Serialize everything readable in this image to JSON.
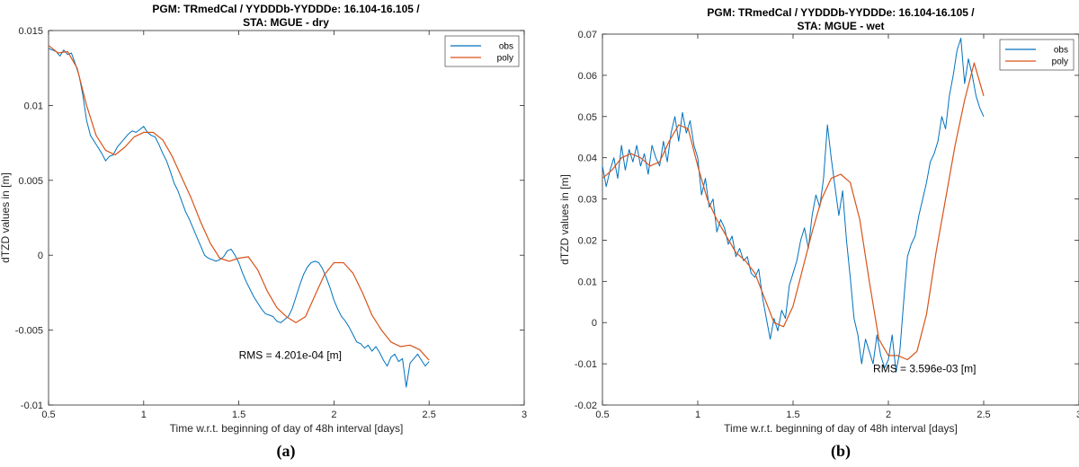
{
  "chart_data": [
    {
      "type": "line",
      "panel_label": "(a)",
      "title_line1": "PGM: TRmedCal / YYDDDb-YYDDDe: 16.104-16.105 /",
      "title_line2": "STA: MGUE - dry",
      "xlabel": "Time w.r.t. beginning of day of 48h interval [days]",
      "ylabel": "dTZD values in [m]",
      "xlim": [
        0.5,
        3
      ],
      "ylim": [
        -0.01,
        0.015
      ],
      "xticks": [
        "0.5",
        "1",
        "1.5",
        "2",
        "2.5",
        "3"
      ],
      "yticks": [
        "-0.01",
        "-0.005",
        "0",
        "0.005",
        "0.01",
        "0.015"
      ],
      "legend_position": "top-right",
      "annotation": "RMS = 4.201e-04 [m]",
      "annotation_at": [
        1.5,
        -0.0069
      ],
      "series": [
        {
          "name": "obs",
          "color": "#0072BD",
          "x": [
            0.5,
            0.52,
            0.54,
            0.56,
            0.58,
            0.6,
            0.62,
            0.64,
            0.66,
            0.68,
            0.7,
            0.72,
            0.74,
            0.76,
            0.78,
            0.8,
            0.82,
            0.84,
            0.86,
            0.88,
            0.9,
            0.92,
            0.94,
            0.96,
            0.98,
            1.0,
            1.02,
            1.04,
            1.06,
            1.08,
            1.1,
            1.12,
            1.14,
            1.16,
            1.18,
            1.2,
            1.22,
            1.24,
            1.26,
            1.28,
            1.3,
            1.32,
            1.34,
            1.36,
            1.38,
            1.4,
            1.42,
            1.44,
            1.46,
            1.48,
            1.5,
            1.52,
            1.54,
            1.56,
            1.58,
            1.6,
            1.62,
            1.64,
            1.66,
            1.68,
            1.7,
            1.72,
            1.74,
            1.76,
            1.78,
            1.8,
            1.82,
            1.84,
            1.86,
            1.88,
            1.9,
            1.92,
            1.94,
            1.96,
            1.98,
            2.0,
            2.02,
            2.04,
            2.06,
            2.08,
            2.1,
            2.12,
            2.14,
            2.16,
            2.18,
            2.2,
            2.22,
            2.24,
            2.26,
            2.28,
            2.3,
            2.32,
            2.34,
            2.36,
            2.38,
            2.4,
            2.42,
            2.44,
            2.46,
            2.48,
            2.5
          ],
          "y": [
            0.0138,
            0.0137,
            0.0136,
            0.0133,
            0.0137,
            0.0134,
            0.0135,
            0.0128,
            0.012,
            0.0107,
            0.009,
            0.008,
            0.0076,
            0.0072,
            0.0068,
            0.0063,
            0.0066,
            0.0067,
            0.0072,
            0.0075,
            0.0078,
            0.0081,
            0.0083,
            0.0082,
            0.0084,
            0.0086,
            0.0082,
            0.008,
            0.0079,
            0.0074,
            0.0068,
            0.0063,
            0.0056,
            0.0048,
            0.0043,
            0.0036,
            0.0029,
            0.0024,
            0.0018,
            0.0012,
            0.0006,
            0.0,
            -0.0002,
            -0.0003,
            -0.0004,
            -0.0003,
            -0.0001,
            0.0003,
            0.0004,
            0.0,
            -0.0005,
            -0.0012,
            -0.0018,
            -0.0023,
            -0.0028,
            -0.0032,
            -0.0036,
            -0.0039,
            -0.004,
            -0.0041,
            -0.0044,
            -0.0045,
            -0.0043,
            -0.0041,
            -0.0036,
            -0.0028,
            -0.002,
            -0.0013,
            -0.0008,
            -0.0005,
            -0.0004,
            -0.0005,
            -0.0009,
            -0.0015,
            -0.0022,
            -0.003,
            -0.0036,
            -0.0041,
            -0.0044,
            -0.0048,
            -0.0053,
            -0.0058,
            -0.0059,
            -0.0062,
            -0.006,
            -0.0064,
            -0.0061,
            -0.0065,
            -0.007,
            -0.0074,
            -0.0068,
            -0.0066,
            -0.0071,
            -0.0069,
            -0.0088,
            -0.0072,
            -0.0069,
            -0.0066,
            -0.007,
            -0.0074,
            -0.0071
          ]
        },
        {
          "name": "poly",
          "color": "#D95319",
          "x": [
            0.5,
            0.55,
            0.6,
            0.65,
            0.7,
            0.75,
            0.8,
            0.85,
            0.9,
            0.95,
            1.0,
            1.05,
            1.1,
            1.15,
            1.2,
            1.25,
            1.3,
            1.35,
            1.4,
            1.45,
            1.5,
            1.55,
            1.6,
            1.65,
            1.7,
            1.75,
            1.8,
            1.85,
            1.9,
            1.95,
            2.0,
            2.05,
            2.1,
            2.15,
            2.2,
            2.25,
            2.3,
            2.35,
            2.4,
            2.45,
            2.5
          ],
          "y": [
            0.014,
            0.0135,
            0.0136,
            0.0125,
            0.01,
            0.008,
            0.007,
            0.0067,
            0.0072,
            0.0079,
            0.0082,
            0.0082,
            0.0077,
            0.0066,
            0.0052,
            0.0038,
            0.0022,
            0.0008,
            -0.0002,
            -0.0004,
            -0.0002,
            -0.0001,
            -0.001,
            -0.0024,
            -0.0035,
            -0.0041,
            -0.0045,
            -0.0041,
            -0.0027,
            -0.0013,
            -0.0005,
            -0.0005,
            -0.0012,
            -0.0025,
            -0.004,
            -0.005,
            -0.0058,
            -0.0061,
            -0.006,
            -0.0063,
            -0.007
          ]
        }
      ]
    },
    {
      "type": "line",
      "panel_label": "(b)",
      "title_line1": "PGM: TRmedCal / YYDDDb-YYDDDe: 16.104-16.105 /",
      "title_line2": "STA: MGUE - wet",
      "xlabel": "Time w.r.t. beginning of day of 48h interval [days]",
      "ylabel": "dTZD values in [m]",
      "xlim": [
        0.5,
        3
      ],
      "ylim": [
        -0.02,
        0.07
      ],
      "xticks": [
        "0.5",
        "1",
        "1.5",
        "2",
        "2.5",
        "3"
      ],
      "yticks": [
        "-0.02",
        "-0.01",
        "0",
        "0.01",
        "0.02",
        "0.03",
        "0.04",
        "0.05",
        "0.06",
        "0.07"
      ],
      "legend_position": "top-right",
      "annotation": "RMS = 3.596e-03 [m]",
      "annotation_at": [
        1.92,
        -0.012
      ],
      "series": [
        {
          "name": "obs",
          "color": "#0072BD",
          "x": [
            0.5,
            0.52,
            0.54,
            0.56,
            0.58,
            0.6,
            0.62,
            0.64,
            0.66,
            0.68,
            0.7,
            0.72,
            0.74,
            0.76,
            0.78,
            0.8,
            0.82,
            0.84,
            0.86,
            0.88,
            0.9,
            0.92,
            0.94,
            0.96,
            0.98,
            1.0,
            1.02,
            1.04,
            1.06,
            1.08,
            1.1,
            1.12,
            1.14,
            1.16,
            1.18,
            1.2,
            1.22,
            1.24,
            1.26,
            1.28,
            1.3,
            1.32,
            1.34,
            1.36,
            1.38,
            1.4,
            1.42,
            1.44,
            1.46,
            1.48,
            1.5,
            1.52,
            1.54,
            1.56,
            1.58,
            1.6,
            1.62,
            1.64,
            1.66,
            1.68,
            1.7,
            1.72,
            1.74,
            1.76,
            1.78,
            1.8,
            1.82,
            1.84,
            1.86,
            1.88,
            1.9,
            1.92,
            1.94,
            1.96,
            1.98,
            2.0,
            2.02,
            2.04,
            2.06,
            2.08,
            2.1,
            2.12,
            2.14,
            2.16,
            2.18,
            2.2,
            2.22,
            2.24,
            2.26,
            2.28,
            2.3,
            2.32,
            2.34,
            2.36,
            2.38,
            2.4,
            2.42,
            2.44,
            2.46,
            2.48,
            2.5
          ],
          "y": [
            0.038,
            0.033,
            0.037,
            0.04,
            0.035,
            0.043,
            0.037,
            0.042,
            0.039,
            0.043,
            0.038,
            0.041,
            0.036,
            0.043,
            0.04,
            0.038,
            0.044,
            0.039,
            0.046,
            0.05,
            0.044,
            0.051,
            0.046,
            0.049,
            0.043,
            0.04,
            0.031,
            0.035,
            0.028,
            0.03,
            0.022,
            0.025,
            0.023,
            0.019,
            0.021,
            0.016,
            0.018,
            0.015,
            0.016,
            0.012,
            0.011,
            0.013,
            0.006,
            0.001,
            -0.004,
            0.001,
            -0.002,
            0.003,
            0.001,
            0.009,
            0.012,
            0.015,
            0.02,
            0.023,
            0.018,
            0.026,
            0.031,
            0.028,
            0.035,
            0.048,
            0.04,
            0.033,
            0.026,
            0.032,
            0.02,
            0.011,
            0.001,
            -0.003,
            -0.01,
            -0.004,
            -0.007,
            -0.01,
            -0.003,
            -0.008,
            -0.011,
            -0.009,
            -0.003,
            -0.012,
            -0.007,
            0.005,
            0.016,
            0.019,
            0.021,
            0.026,
            0.03,
            0.034,
            0.039,
            0.041,
            0.044,
            0.05,
            0.047,
            0.055,
            0.06,
            0.066,
            0.069,
            0.058,
            0.064,
            0.06,
            0.055,
            0.052,
            0.05
          ]
        },
        {
          "name": "poly",
          "color": "#D95319",
          "x": [
            0.5,
            0.55,
            0.6,
            0.65,
            0.7,
            0.75,
            0.8,
            0.85,
            0.9,
            0.95,
            1.0,
            1.05,
            1.1,
            1.15,
            1.2,
            1.25,
            1.3,
            1.35,
            1.4,
            1.45,
            1.5,
            1.55,
            1.6,
            1.65,
            1.7,
            1.75,
            1.8,
            1.85,
            1.9,
            1.95,
            2.0,
            2.05,
            2.1,
            2.15,
            2.2,
            2.25,
            2.3,
            2.35,
            2.4,
            2.45,
            2.5
          ],
          "y": [
            0.035,
            0.037,
            0.04,
            0.041,
            0.04,
            0.038,
            0.039,
            0.044,
            0.048,
            0.047,
            0.038,
            0.03,
            0.025,
            0.021,
            0.017,
            0.015,
            0.012,
            0.006,
            0.0,
            -0.001,
            0.004,
            0.013,
            0.022,
            0.03,
            0.035,
            0.036,
            0.034,
            0.025,
            0.01,
            -0.004,
            -0.008,
            -0.008,
            -0.009,
            -0.007,
            0.002,
            0.017,
            0.03,
            0.043,
            0.054,
            0.063,
            0.055
          ]
        }
      ]
    }
  ]
}
